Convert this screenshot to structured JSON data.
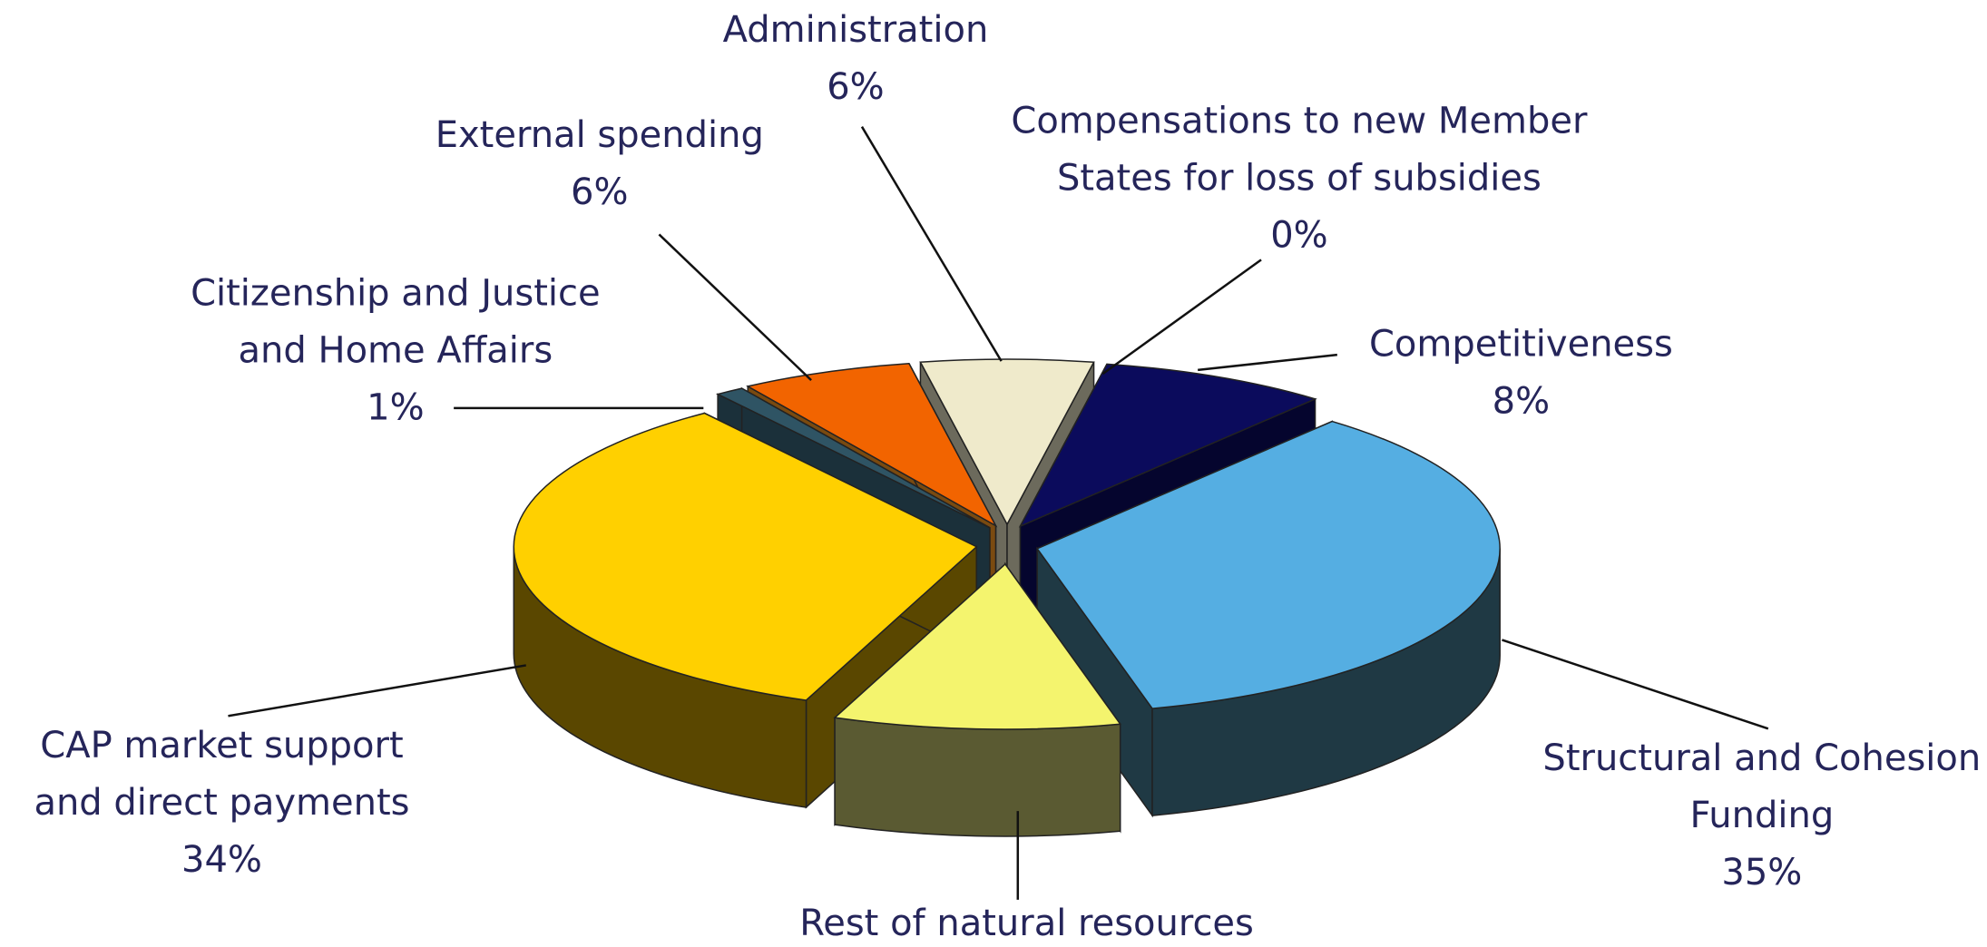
{
  "chart_data": {
    "type": "pie3d",
    "categories": [
      [
        "Administration"
      ],
      [
        "Compensations to new Member",
        "States for loss of subsidies"
      ],
      [
        "Competitiveness"
      ],
      [
        "Structural and Cohesion",
        "Funding"
      ],
      [
        "Rest of natural resources"
      ],
      [
        "CAP market support",
        "and direct payments"
      ],
      [
        "Citizenship and Justice",
        "and Home Affairs"
      ],
      [
        "External spending"
      ]
    ],
    "values": [
      6,
      0,
      8,
      35,
      10,
      34,
      1,
      6
    ],
    "value_labels": [
      "6%",
      "0%",
      "8%",
      "35%",
      null,
      "34%",
      "1%",
      "6%"
    ],
    "colors": [
      "#efeacb",
      "#9aa7b0",
      "#0b0b5c",
      "#55aee2",
      "#f4f46e",
      "#ffd000",
      "#2f5464",
      "#f26400"
    ],
    "side_colors": [
      "#6c6a5c",
      "#555555",
      "#05052e",
      "#1f3944",
      "#5a5a32",
      "#5a4700",
      "#1b303a",
      "#7a4a10"
    ]
  }
}
